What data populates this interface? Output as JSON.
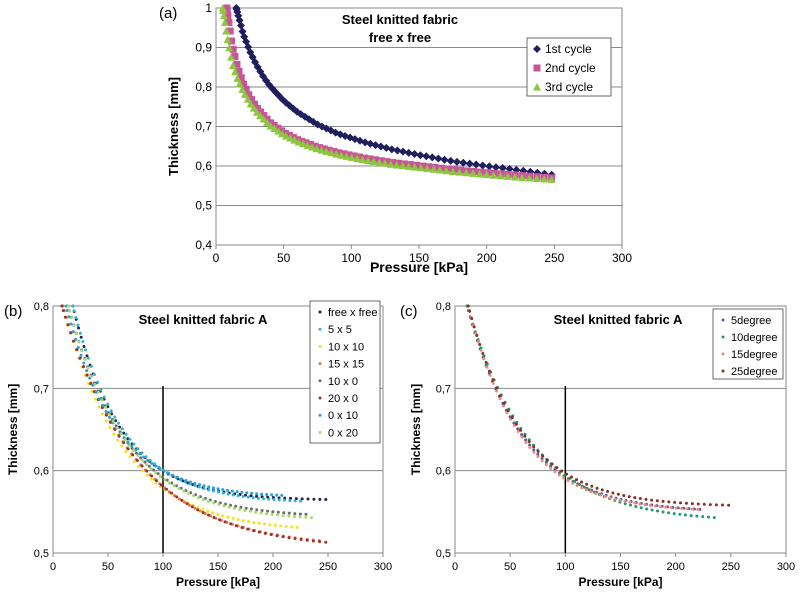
{
  "chart_data": [
    {
      "panel": "(a)",
      "type": "scatter",
      "title": "Steel knitted fabric",
      "subtitle": "free x free",
      "xlabel": "Pressure [kPa]",
      "ylabel": "Thickness [mm]",
      "xlim": [
        0,
        300
      ],
      "ylim": [
        0.4,
        1
      ],
      "xticks": [
        "0",
        "50",
        "100",
        "150",
        "200",
        "250",
        "300"
      ],
      "yticks": [
        "0,4",
        "0,5",
        "0,6",
        "0,7",
        "0,8",
        "0,9",
        "1"
      ],
      "grid": "horizontal",
      "legend": "top-right",
      "series": [
        {
          "name": "1st cycle",
          "marker": "diamond",
          "color": "#1f1f5e",
          "x": [
            15,
            20,
            25,
            30,
            35,
            40,
            50,
            60,
            75,
            90,
            110,
            130,
            150,
            175,
            200,
            225,
            248
          ],
          "y": [
            1.0,
            0.935,
            0.89,
            0.855,
            0.826,
            0.802,
            0.765,
            0.737,
            0.705,
            0.682,
            0.66,
            0.642,
            0.628,
            0.612,
            0.6,
            0.589,
            0.578
          ]
        },
        {
          "name": "2nd cycle",
          "marker": "square",
          "color": "#c8559a",
          "x": [
            8,
            12,
            16,
            20,
            25,
            30,
            40,
            50,
            60,
            75,
            90,
            110,
            130,
            150,
            175,
            200,
            225,
            248
          ],
          "y": [
            1.0,
            0.905,
            0.85,
            0.81,
            0.775,
            0.748,
            0.71,
            0.685,
            0.667,
            0.648,
            0.634,
            0.62,
            0.609,
            0.601,
            0.591,
            0.583,
            0.576,
            0.57
          ]
        },
        {
          "name": "3rd cycle",
          "marker": "triangle",
          "color": "#8dc63f",
          "x": [
            5,
            8,
            12,
            16,
            20,
            25,
            30,
            40,
            50,
            60,
            75,
            90,
            110,
            130,
            150,
            175,
            200,
            225,
            248
          ],
          "y": [
            1.0,
            0.93,
            0.86,
            0.82,
            0.79,
            0.76,
            0.737,
            0.702,
            0.679,
            0.662,
            0.643,
            0.629,
            0.615,
            0.604,
            0.596,
            0.586,
            0.578,
            0.571,
            0.566
          ]
        }
      ]
    },
    {
      "panel": "(b)",
      "type": "scatter",
      "title": "Steel knitted fabric A",
      "xlabel": "Pressure [kPa]",
      "ylabel": "Thickness [mm]",
      "xlim": [
        0,
        300
      ],
      "ylim": [
        0.5,
        0.8
      ],
      "xticks": [
        "0",
        "50",
        "100",
        "150",
        "200",
        "250",
        "300"
      ],
      "yticks": [
        "0,5",
        "0,6",
        "0,7",
        "0,8"
      ],
      "grid": "horizontal",
      "legend": "top-right",
      "vline_x": 100,
      "series": [
        {
          "name": "free x free",
          "color": "#1f1f5e",
          "x0": 18,
          "x1": 248,
          "a": 1.65,
          "y_end": 0.565
        },
        {
          "name": "5 x 5",
          "color": "#2eb7c9",
          "x0": 18,
          "x1": 225,
          "a": 1.4,
          "y_end": 0.563
        },
        {
          "name": "10 x 10",
          "color": "#f2e31e",
          "x0": 9,
          "x1": 222,
          "a": 1.2,
          "y_end": 0.531
        },
        {
          "name": "15 x 15",
          "color": "#e8734a",
          "x0": 9,
          "x1": 242,
          "a": 1.1,
          "y_end": 0.515
        },
        {
          "name": "10 x 0",
          "color": "#6c6c6c",
          "x0": 14,
          "x1": 230,
          "a": 1.3,
          "y_end": 0.547
        },
        {
          "name": "20 x 0",
          "color": "#9a3328",
          "x0": 8,
          "x1": 248,
          "a": 1.1,
          "y_end": 0.513
        },
        {
          "name": "0 x 10",
          "color": "#2a9fd6",
          "x0": 12,
          "x1": 208,
          "a": 1.35,
          "y_end": 0.57
        },
        {
          "name": "0 x 20",
          "color": "#a7d86e",
          "x0": 14,
          "x1": 235,
          "a": 1.3,
          "y_end": 0.543
        }
      ]
    },
    {
      "panel": "(c)",
      "type": "scatter",
      "title": "Steel knitted fabric A",
      "xlabel": "Pressure [kPa]",
      "ylabel": "Thickness [mm]",
      "xlim": [
        0,
        300
      ],
      "ylim": [
        0.5,
        0.8
      ],
      "xticks": [
        "0",
        "50",
        "100",
        "150",
        "200",
        "250",
        "300"
      ],
      "yticks": [
        "0,5",
        "0,6",
        "0,7",
        "0,8"
      ],
      "grid": "horizontal",
      "legend": "top-right",
      "vline_x": 100,
      "series": [
        {
          "name": "5degree",
          "color": "#5a5aa8",
          "x0": 11,
          "x1": 222,
          "a": 1.3,
          "y_end": 0.553
        },
        {
          "name": "10degree",
          "color": "#1f9a6a",
          "x0": 11,
          "x1": 235,
          "a": 1.2,
          "y_end": 0.543
        },
        {
          "name": "15degree",
          "color": "#f08a78",
          "x0": 12,
          "x1": 220,
          "a": 1.35,
          "y_end": 0.553
        },
        {
          "name": "25degree",
          "color": "#8b2f20",
          "x0": 12,
          "x1": 248,
          "a": 1.5,
          "y_end": 0.558
        }
      ]
    }
  ]
}
